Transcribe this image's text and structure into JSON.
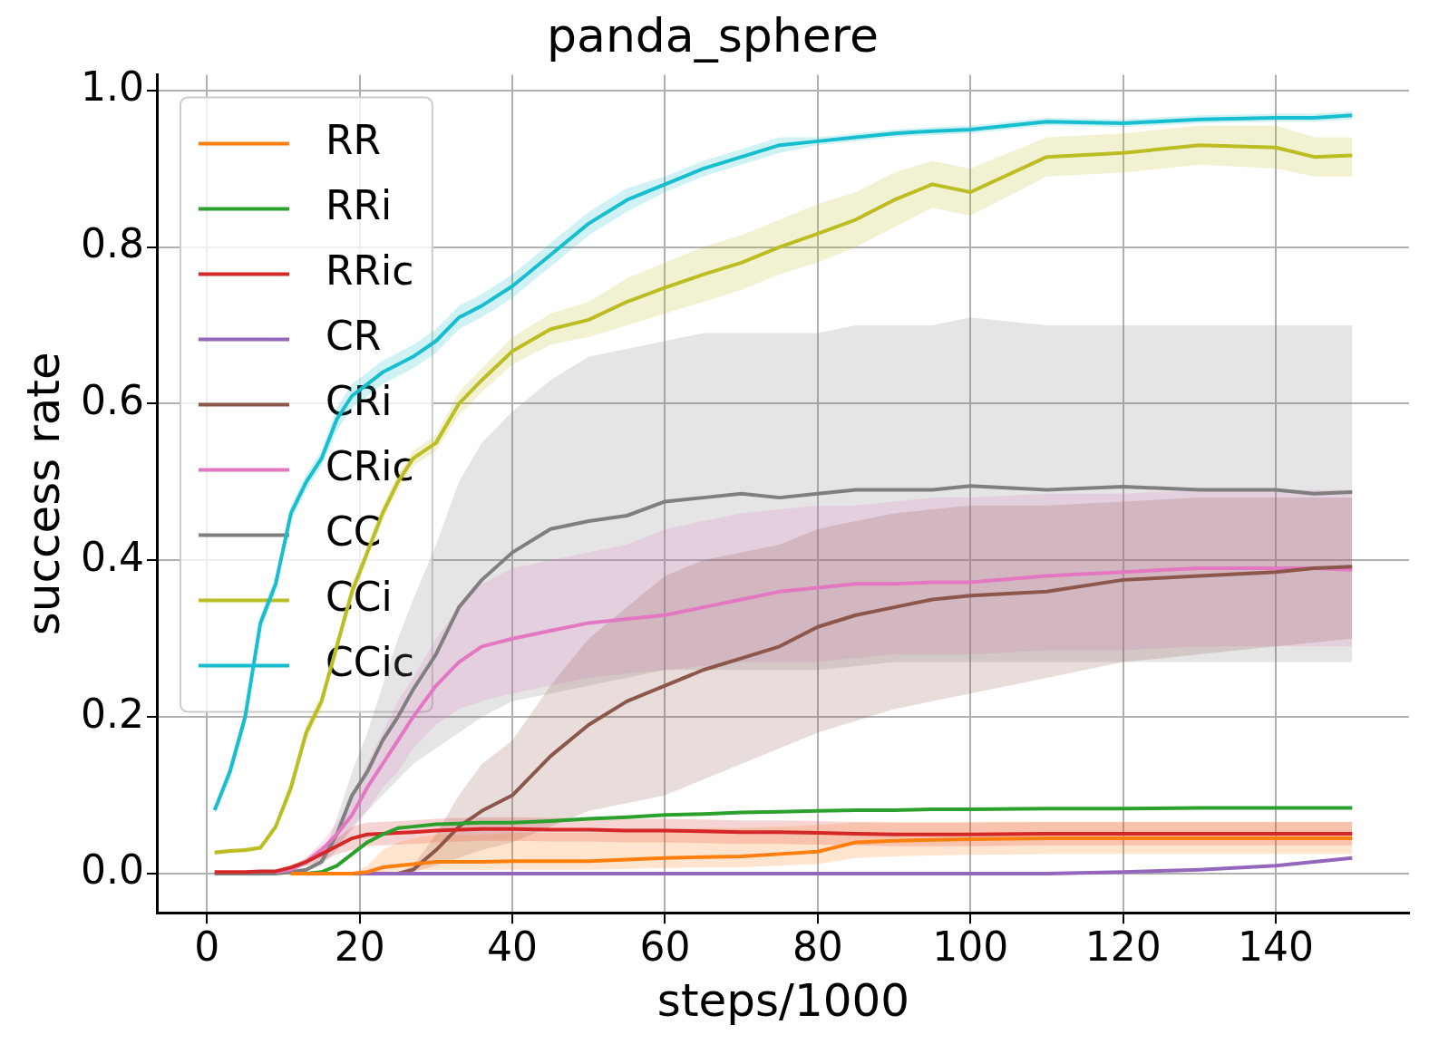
{
  "chart_data": {
    "type": "line",
    "title": "panda_sphere",
    "xlabel": "steps/1000",
    "ylabel": "success rate",
    "x": [
      1,
      3,
      5,
      7,
      9,
      11,
      13,
      15,
      17,
      19,
      21,
      23,
      25,
      27,
      30,
      33,
      36,
      40,
      45,
      50,
      55,
      60,
      65,
      70,
      75,
      80,
      85,
      90,
      95,
      100,
      110,
      120,
      130,
      140,
      145,
      150
    ],
    "xlim": [
      -6.45,
      157.45
    ],
    "xticks": [
      0,
      20,
      40,
      60,
      80,
      100,
      120,
      140
    ],
    "ylim": [
      -0.05,
      1.02
    ],
    "yticks": [
      {
        "value": 0,
        "label": "0.0"
      },
      {
        "value": 0.2,
        "label": "0.2"
      },
      {
        "value": 0.4,
        "label": "0.4"
      },
      {
        "value": 0.6,
        "label": "0.6"
      },
      {
        "value": 0.8,
        "label": "0.8"
      },
      {
        "value": 1,
        "label": "1.0"
      }
    ],
    "grid": true,
    "legend": "top left",
    "series": [
      {
        "name": "RR",
        "color": "#ff7f0e",
        "values": [
          null,
          null,
          null,
          null,
          null,
          0,
          0,
          0,
          0,
          0,
          0.002,
          0.008,
          0.01,
          0.012,
          0.015,
          0.015,
          0.015,
          0.016,
          0.016,
          0.016,
          0.018,
          0.02,
          0.021,
          0.022,
          0.025,
          0.028,
          0.04,
          0.042,
          0.043,
          0.044,
          0.045,
          0.045,
          0.045,
          0.045,
          0.045,
          0.045
        ],
        "lower": [
          0,
          0,
          0,
          0,
          0,
          0,
          0,
          0,
          0,
          0,
          0,
          0.002,
          0.003,
          0.004,
          0.005,
          0.005,
          0.005,
          0.005,
          0.005,
          0.005,
          0.006,
          0.007,
          0.008,
          0.008,
          0.01,
          0.012,
          0.02,
          0.022,
          0.023,
          0.024,
          0.025,
          0.025,
          0.025,
          0.025,
          0.025,
          0.025
        ],
        "upper": [
          0,
          0,
          0,
          0,
          0,
          0,
          0,
          0,
          0,
          0,
          0.01,
          0.03,
          0.04,
          0.045,
          0.05,
          0.05,
          0.05,
          0.052,
          0.052,
          0.052,
          0.054,
          0.056,
          0.058,
          0.058,
          0.06,
          0.062,
          0.065,
          0.066,
          0.066,
          0.066,
          0.066,
          0.066,
          0.066,
          0.066,
          0.066,
          0.066
        ]
      },
      {
        "name": "RRi",
        "color": "#2ca02c",
        "values": [
          null,
          null,
          null,
          null,
          null,
          0,
          0,
          0.002,
          0.01,
          0.025,
          0.04,
          0.05,
          0.058,
          0.06,
          0.063,
          0.064,
          0.065,
          0.065,
          0.067,
          0.07,
          0.072,
          0.075,
          0.076,
          0.078,
          0.079,
          0.08,
          0.081,
          0.081,
          0.082,
          0.082,
          0.083,
          0.083,
          0.084,
          0.084,
          0.084,
          0.084
        ]
      },
      {
        "name": "RRic",
        "color": "#d62728",
        "values": [
          0.002,
          0.002,
          0.002,
          0.003,
          0.003,
          0.008,
          0.015,
          0.025,
          0.035,
          0.045,
          0.05,
          0.051,
          0.052,
          0.053,
          0.055,
          0.056,
          0.057,
          0.057,
          0.056,
          0.056,
          0.055,
          0.055,
          0.054,
          0.053,
          0.053,
          0.052,
          0.051,
          0.05,
          0.05,
          0.05,
          0.051,
          0.051,
          0.051,
          0.051,
          0.051,
          0.051
        ],
        "lower": [
          0.001,
          0.001,
          0.001,
          0.002,
          0.002,
          0.005,
          0.01,
          0.015,
          0.025,
          0.03,
          0.035,
          0.036,
          0.037,
          0.038,
          0.04,
          0.041,
          0.042,
          0.042,
          0.041,
          0.041,
          0.04,
          0.04,
          0.039,
          0.038,
          0.038,
          0.037,
          0.036,
          0.035,
          0.035,
          0.035,
          0.036,
          0.036,
          0.036,
          0.036,
          0.036,
          0.036
        ],
        "upper": [
          0.003,
          0.003,
          0.003,
          0.004,
          0.004,
          0.011,
          0.02,
          0.035,
          0.045,
          0.06,
          0.065,
          0.066,
          0.067,
          0.068,
          0.07,
          0.071,
          0.072,
          0.072,
          0.071,
          0.071,
          0.07,
          0.07,
          0.069,
          0.068,
          0.068,
          0.067,
          0.066,
          0.065,
          0.065,
          0.065,
          0.066,
          0.066,
          0.066,
          0.066,
          0.066,
          0.066
        ]
      },
      {
        "name": "CR",
        "color": "#9467bd",
        "values": [
          null,
          null,
          null,
          null,
          null,
          0,
          0,
          0,
          0,
          0,
          0,
          0,
          0,
          0,
          0,
          0,
          0,
          0,
          0,
          0,
          0,
          0,
          0,
          0,
          0,
          0,
          0,
          0,
          0,
          0,
          0,
          0.002,
          0.005,
          0.01,
          0.015,
          0.02
        ]
      },
      {
        "name": "CRi",
        "color": "#8c564b",
        "values": [
          null,
          null,
          null,
          null,
          null,
          0,
          0,
          0,
          0,
          0,
          0,
          0,
          0,
          0.005,
          0.03,
          0.06,
          0.08,
          0.1,
          0.15,
          0.19,
          0.22,
          0.24,
          0.26,
          0.275,
          0.29,
          0.315,
          0.33,
          0.34,
          0.35,
          0.355,
          0.36,
          0.375,
          0.38,
          0.385,
          0.39,
          0.392
        ],
        "lower": [
          0,
          0,
          0,
          0,
          0,
          0,
          0,
          0,
          0,
          0,
          0,
          0,
          0,
          0.002,
          0.01,
          0.02,
          0.03,
          0.04,
          0.06,
          0.08,
          0.09,
          0.1,
          0.12,
          0.14,
          0.16,
          0.18,
          0.195,
          0.21,
          0.22,
          0.23,
          0.25,
          0.27,
          0.28,
          0.29,
          0.295,
          0.3
        ],
        "upper": [
          0,
          0,
          0,
          0,
          0,
          0,
          0,
          0,
          0,
          0,
          0,
          0,
          0,
          0.01,
          0.05,
          0.1,
          0.14,
          0.17,
          0.24,
          0.3,
          0.34,
          0.38,
          0.4,
          0.41,
          0.42,
          0.44,
          0.45,
          0.46,
          0.465,
          0.47,
          0.47,
          0.475,
          0.48,
          0.48,
          0.48,
          0.48
        ]
      },
      {
        "name": "CRic",
        "color": "#e377c2",
        "values": [
          null,
          null,
          null,
          null,
          0.002,
          0.005,
          0.015,
          0.03,
          0.05,
          0.075,
          0.11,
          0.14,
          0.17,
          0.2,
          0.24,
          0.27,
          0.29,
          0.3,
          0.31,
          0.32,
          0.325,
          0.33,
          0.34,
          0.35,
          0.36,
          0.365,
          0.37,
          0.37,
          0.372,
          0.372,
          0.38,
          0.385,
          0.39,
          0.39,
          0.39,
          0.388
        ],
        "lower": [
          0,
          0,
          0,
          0,
          0.001,
          0.003,
          0.01,
          0.02,
          0.035,
          0.055,
          0.08,
          0.11,
          0.13,
          0.16,
          0.19,
          0.21,
          0.22,
          0.23,
          0.24,
          0.25,
          0.255,
          0.26,
          0.265,
          0.27,
          0.27,
          0.27,
          0.275,
          0.28,
          0.28,
          0.28,
          0.285,
          0.285,
          0.29,
          0.29,
          0.29,
          0.29
        ],
        "upper": [
          0,
          0,
          0,
          0,
          0.003,
          0.008,
          0.02,
          0.04,
          0.065,
          0.095,
          0.14,
          0.18,
          0.22,
          0.25,
          0.3,
          0.34,
          0.37,
          0.39,
          0.4,
          0.41,
          0.42,
          0.44,
          0.45,
          0.46,
          0.465,
          0.47,
          0.47,
          0.475,
          0.48,
          0.48,
          0.485,
          0.485,
          0.49,
          0.49,
          0.49,
          0.49
        ]
      },
      {
        "name": "CC",
        "color": "#7f7f7f",
        "values": [
          0,
          0,
          0,
          0,
          0,
          0.002,
          0.005,
          0.015,
          0.05,
          0.1,
          0.13,
          0.17,
          0.2,
          0.235,
          0.28,
          0.34,
          0.375,
          0.41,
          0.44,
          0.45,
          0.457,
          0.475,
          0.48,
          0.485,
          0.48,
          0.485,
          0.49,
          0.49,
          0.49,
          0.495,
          0.49,
          0.494,
          0.49,
          0.49,
          0.485,
          0.487
        ],
        "lower": [
          0,
          0,
          0,
          0,
          0,
          0.001,
          0.003,
          0.01,
          0.03,
          0.06,
          0.08,
          0.1,
          0.12,
          0.14,
          0.16,
          0.18,
          0.2,
          0.22,
          0.23,
          0.24,
          0.25,
          0.26,
          0.26,
          0.26,
          0.26,
          0.26,
          0.265,
          0.27,
          0.27,
          0.27,
          0.27,
          0.27,
          0.27,
          0.27,
          0.27,
          0.27
        ],
        "upper": [
          0,
          0,
          0,
          0,
          0,
          0.003,
          0.008,
          0.02,
          0.07,
          0.13,
          0.18,
          0.24,
          0.3,
          0.35,
          0.42,
          0.5,
          0.55,
          0.59,
          0.63,
          0.66,
          0.67,
          0.68,
          0.69,
          0.69,
          0.69,
          0.69,
          0.7,
          0.7,
          0.7,
          0.71,
          0.7,
          0.7,
          0.7,
          0.7,
          0.7,
          0.7
        ]
      },
      {
        "name": "CCi",
        "color": "#bcbd22",
        "values": [
          0.027,
          0.029,
          0.03,
          0.033,
          0.06,
          0.11,
          0.18,
          0.22,
          0.29,
          0.36,
          0.41,
          0.46,
          0.5,
          0.53,
          0.55,
          0.6,
          0.63,
          0.667,
          0.695,
          0.707,
          0.73,
          0.748,
          0.765,
          0.78,
          0.8,
          0.817,
          0.835,
          0.86,
          0.88,
          0.87,
          0.915,
          0.92,
          0.93,
          0.927,
          0.915,
          0.917
        ],
        "lower": [
          0.024,
          0.026,
          0.027,
          0.03,
          0.055,
          0.1,
          0.17,
          0.21,
          0.28,
          0.35,
          0.4,
          0.45,
          0.49,
          0.52,
          0.54,
          0.585,
          0.615,
          0.65,
          0.675,
          0.685,
          0.7,
          0.715,
          0.73,
          0.745,
          0.765,
          0.78,
          0.8,
          0.825,
          0.85,
          0.84,
          0.89,
          0.895,
          0.905,
          0.9,
          0.89,
          0.89
        ],
        "upper": [
          0.03,
          0.032,
          0.033,
          0.036,
          0.065,
          0.12,
          0.19,
          0.23,
          0.3,
          0.37,
          0.42,
          0.47,
          0.51,
          0.54,
          0.56,
          0.615,
          0.645,
          0.685,
          0.715,
          0.73,
          0.76,
          0.78,
          0.8,
          0.815,
          0.835,
          0.855,
          0.87,
          0.895,
          0.91,
          0.9,
          0.94,
          0.945,
          0.955,
          0.955,
          0.94,
          0.94
        ]
      },
      {
        "name": "CCic",
        "color": "#17becf",
        "values": [
          0.081,
          0.13,
          0.2,
          0.32,
          0.37,
          0.46,
          0.5,
          0.53,
          0.58,
          0.61,
          0.625,
          0.64,
          0.65,
          0.66,
          0.68,
          0.71,
          0.725,
          0.75,
          0.79,
          0.83,
          0.86,
          0.88,
          0.9,
          0.915,
          0.93,
          0.935,
          0.94,
          0.945,
          0.948,
          0.95,
          0.96,
          0.958,
          0.963,
          0.965,
          0.965,
          0.968
        ],
        "lower": [
          0.076,
          0.12,
          0.19,
          0.31,
          0.36,
          0.45,
          0.49,
          0.52,
          0.565,
          0.595,
          0.61,
          0.625,
          0.635,
          0.645,
          0.665,
          0.695,
          0.71,
          0.735,
          0.775,
          0.815,
          0.845,
          0.87,
          0.89,
          0.905,
          0.92,
          0.93,
          0.935,
          0.94,
          0.943,
          0.945,
          0.955,
          0.953,
          0.958,
          0.96,
          0.96,
          0.963
        ],
        "upper": [
          0.086,
          0.14,
          0.21,
          0.33,
          0.38,
          0.47,
          0.51,
          0.54,
          0.595,
          0.625,
          0.64,
          0.655,
          0.665,
          0.675,
          0.695,
          0.725,
          0.74,
          0.765,
          0.805,
          0.845,
          0.875,
          0.89,
          0.91,
          0.925,
          0.94,
          0.94,
          0.945,
          0.95,
          0.953,
          0.955,
          0.965,
          0.963,
          0.968,
          0.97,
          0.97,
          0.973
        ]
      }
    ]
  }
}
